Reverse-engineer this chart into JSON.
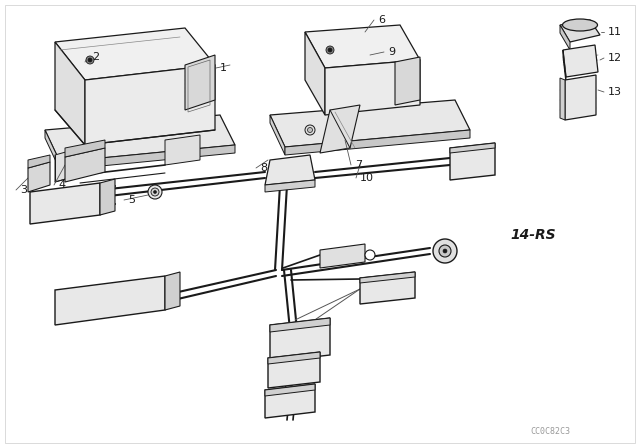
{
  "bg_color": "#ffffff",
  "line_color": "#1a1a1a",
  "fig_width": 6.4,
  "fig_height": 4.48,
  "dpi": 100,
  "watermark": "CC0C82C3",
  "side_label": "14-RS"
}
